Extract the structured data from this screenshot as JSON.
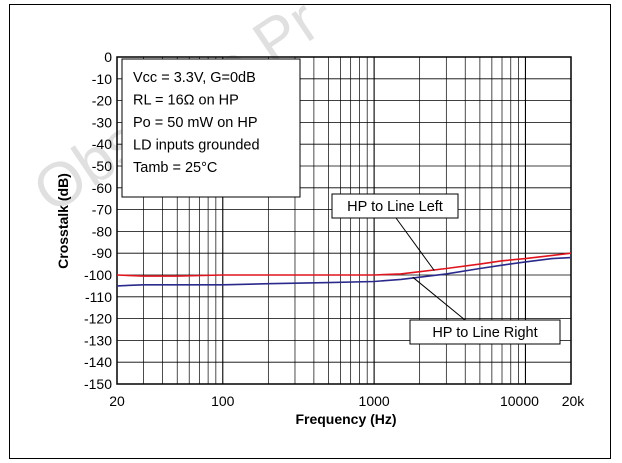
{
  "watermark_text": "Obsolete Pr",
  "colors": {
    "series_left": "#e0141e",
    "series_right": "#2a2a8c",
    "grid": "#000000",
    "watermark": "#c8c8c8"
  },
  "chart_data": {
    "type": "line",
    "xlabel": "Frequency (Hz)",
    "ylabel": "Crosstalk (dB)",
    "xscale": "log",
    "xlim": [
      20,
      20000
    ],
    "ylim": [
      -150,
      0
    ],
    "xticks": [
      20,
      100,
      1000,
      10000,
      20000
    ],
    "xtick_labels": [
      "20",
      "100",
      "1000",
      "10000",
      "20k"
    ],
    "yticks": [
      0,
      -10,
      -20,
      -30,
      -40,
      -50,
      -60,
      -70,
      -80,
      -90,
      -100,
      -110,
      -120,
      -130,
      -140,
      -150
    ],
    "grid": true,
    "conditions": [
      "Vcc = 3.3V, G=0dB",
      "RL = 16Ω on HP",
      "Po = 50 mW on HP",
      "LD inputs grounded",
      "Tamb  = 25°C"
    ],
    "series": [
      {
        "name": "HP to Line Left",
        "x": [
          20,
          30,
          50,
          100,
          200,
          500,
          1000,
          1500,
          2000,
          3000,
          5000,
          7000,
          10000,
          15000,
          20000
        ],
        "y": [
          -100,
          -100.5,
          -100.5,
          -100,
          -100,
          -100,
          -100,
          -99.5,
          -98.5,
          -97,
          -95,
          -93.5,
          -92.5,
          -91,
          -90
        ]
      },
      {
        "name": "HP to Line Right",
        "x": [
          20,
          30,
          50,
          100,
          200,
          500,
          1000,
          1500,
          2000,
          3000,
          5000,
          7000,
          10000,
          15000,
          20000
        ],
        "y": [
          -105,
          -104.5,
          -104.5,
          -104.5,
          -104,
          -103.5,
          -103,
          -102,
          -101,
          -99.5,
          -97,
          -95.5,
          -94,
          -92.5,
          -92
        ]
      }
    ]
  }
}
